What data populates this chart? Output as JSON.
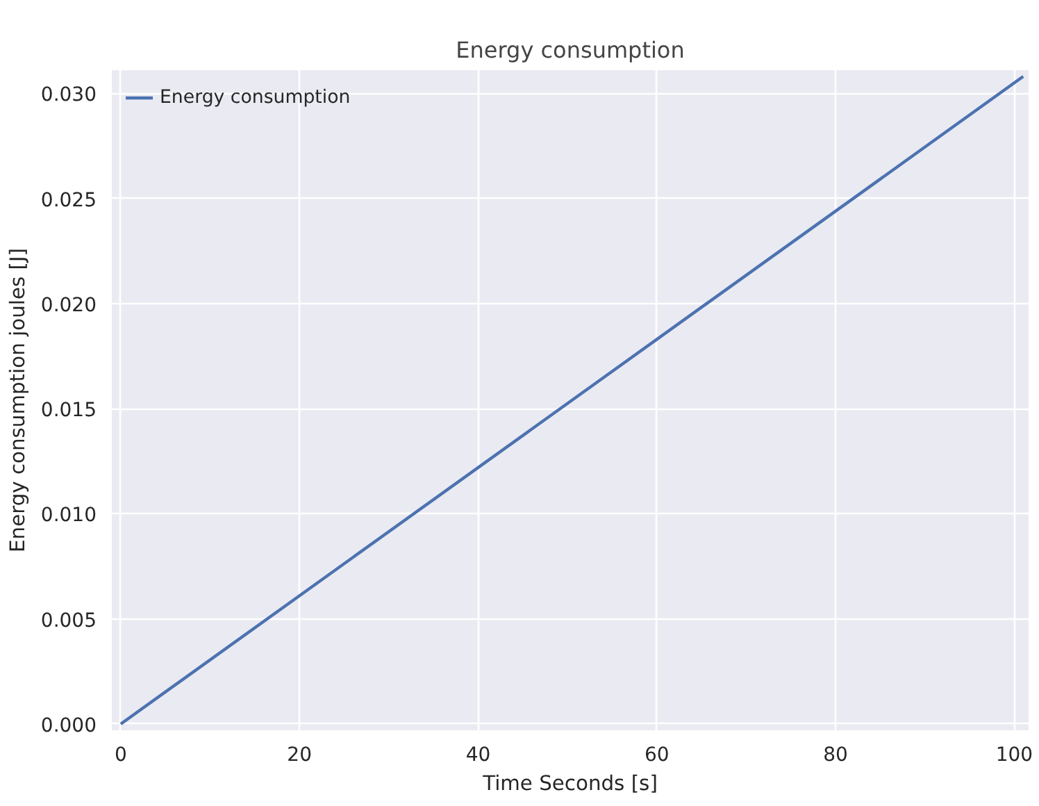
{
  "chart_data": {
    "type": "line",
    "title": "Energy consumption",
    "xlabel": "Time Seconds [s]",
    "ylabel": "Energy consumption joules [J]",
    "x": [
      0,
      101
    ],
    "series": [
      {
        "name": "Energy consumption",
        "color": "#4c72b0",
        "values": [
          0,
          0.0308
        ]
      }
    ],
    "xlim": [
      -1,
      101.6
    ],
    "ylim": [
      -0.0003,
      0.0311
    ],
    "xticks": [
      0,
      20,
      40,
      60,
      80,
      100
    ],
    "yticks": [
      {
        "value": 0,
        "label": "0.000"
      },
      {
        "value": 0.005,
        "label": "0.005"
      },
      {
        "value": 0.01,
        "label": "0.010"
      },
      {
        "value": 0.015,
        "label": "0.015"
      },
      {
        "value": 0.02,
        "label": "0.020"
      },
      {
        "value": 0.025,
        "label": "0.025"
      },
      {
        "value": 0.03,
        "label": "0.030"
      }
    ],
    "grid": true,
    "legend": "top left",
    "line_style": "solid"
  }
}
